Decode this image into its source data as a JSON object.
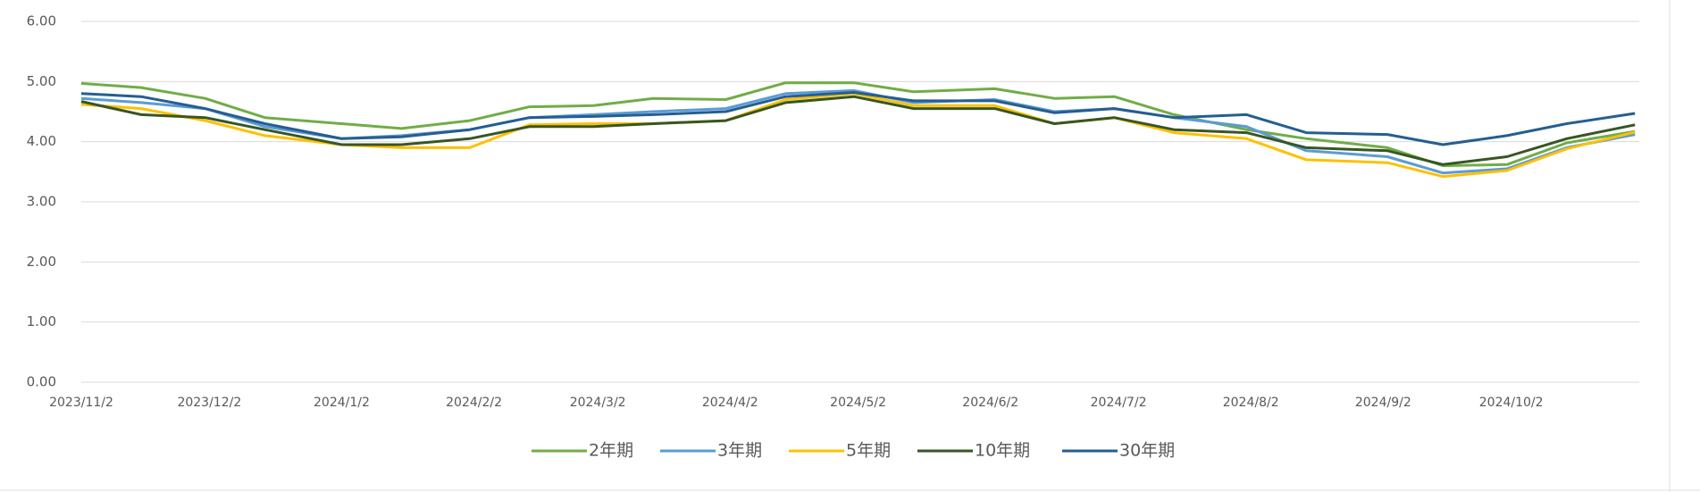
{
  "chart_data": {
    "type": "line",
    "x": [
      "2023/11/2",
      "2023/11/16",
      "2023/12/1",
      "2023/12/15",
      "2024/1/2",
      "2024/1/16",
      "2024/2/1",
      "2024/2/15",
      "2024/3/1",
      "2024/3/15",
      "2024/4/1",
      "2024/4/15",
      "2024/5/1",
      "2024/5/15",
      "2024/6/3",
      "2024/6/17",
      "2024/7/1",
      "2024/7/15",
      "2024/8/1",
      "2024/8/15",
      "2024/9/3",
      "2024/9/16",
      "2024/10/1",
      "2024/10/15",
      "2024/10/31"
    ],
    "xlim": [
      "2023/11/2",
      "2024/11/1"
    ],
    "xticks": [
      "2023/11/2",
      "2023/12/2",
      "2024/1/2",
      "2024/2/2",
      "2024/3/2",
      "2024/4/2",
      "2024/5/2",
      "2024/6/2",
      "2024/7/2",
      "2024/8/2",
      "2024/9/2",
      "2024/10/2"
    ],
    "ylim": [
      0,
      6
    ],
    "yticks": [
      {
        "value": 0,
        "label": "0.00"
      },
      {
        "value": 1,
        "label": "1.00"
      },
      {
        "value": 2,
        "label": "2.00"
      },
      {
        "value": 3,
        "label": "3.00"
      },
      {
        "value": 4,
        "label": "4.00"
      },
      {
        "value": 5,
        "label": "5.00"
      },
      {
        "value": 6,
        "label": "6.00"
      }
    ],
    "grid": true,
    "legend": "bottom",
    "series": [
      {
        "name": "2年期",
        "color": "#70ad47",
        "values": [
          4.97,
          4.9,
          4.72,
          4.4,
          4.3,
          4.22,
          4.35,
          4.58,
          4.6,
          4.72,
          4.7,
          4.98,
          4.98,
          4.83,
          4.88,
          4.72,
          4.75,
          4.45,
          4.2,
          4.05,
          3.9,
          3.6,
          3.62,
          3.98,
          4.17
        ]
      },
      {
        "name": "3年期",
        "color": "#5b9bd5",
        "values": [
          4.72,
          4.65,
          4.55,
          4.25,
          4.05,
          4.1,
          4.2,
          4.4,
          4.45,
          4.5,
          4.55,
          4.8,
          4.85,
          4.65,
          4.7,
          4.5,
          4.55,
          4.4,
          4.25,
          3.85,
          3.75,
          3.48,
          3.55,
          3.9,
          4.12
        ]
      },
      {
        "name": "5年期",
        "color": "#ffc000",
        "values": [
          4.62,
          4.55,
          4.35,
          4.1,
          3.95,
          3.9,
          3.9,
          4.28,
          4.3,
          4.3,
          4.35,
          4.7,
          4.8,
          4.6,
          4.6,
          4.3,
          4.4,
          4.15,
          4.05,
          3.7,
          3.65,
          3.42,
          3.52,
          3.88,
          4.16
        ]
      },
      {
        "name": "10年期",
        "color": "#375623",
        "values": [
          4.67,
          4.45,
          4.4,
          4.2,
          3.95,
          3.95,
          4.05,
          4.25,
          4.25,
          4.3,
          4.35,
          4.65,
          4.75,
          4.55,
          4.55,
          4.3,
          4.4,
          4.2,
          4.15,
          3.9,
          3.85,
          3.62,
          3.75,
          4.05,
          4.28
        ]
      },
      {
        "name": "30年期",
        "color": "#255e91",
        "values": [
          4.8,
          4.75,
          4.55,
          4.3,
          4.05,
          4.08,
          4.2,
          4.4,
          4.42,
          4.45,
          4.5,
          4.75,
          4.82,
          4.68,
          4.68,
          4.48,
          4.55,
          4.4,
          4.45,
          4.15,
          4.12,
          3.95,
          4.1,
          4.3,
          4.47
        ]
      }
    ]
  }
}
